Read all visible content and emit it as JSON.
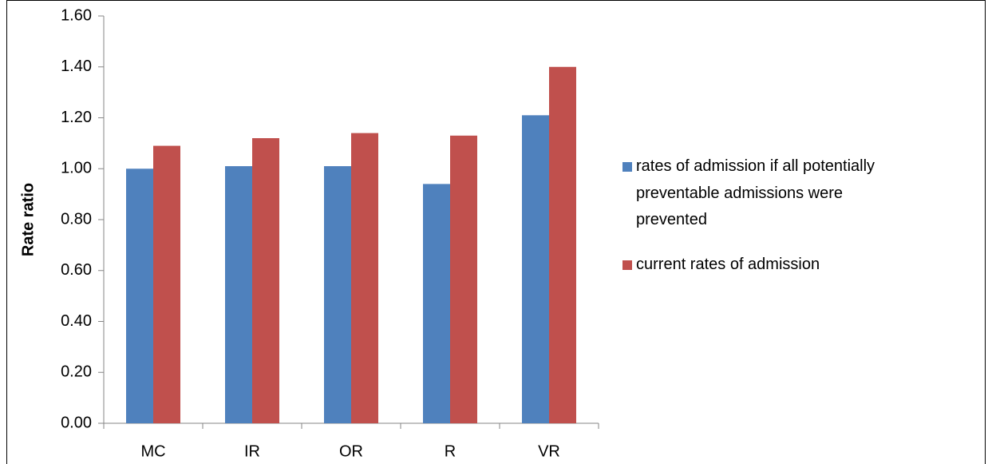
{
  "chart_data": {
    "type": "bar",
    "y_label": "Rate ratio",
    "categories": [
      "MC",
      "IR",
      "OR",
      "R",
      "VR"
    ],
    "series": [
      {
        "name": "rates of admission if all potentially preventable admissions were prevented",
        "color": "#4f81bd",
        "values": [
          1.0,
          1.01,
          1.01,
          0.94,
          1.21
        ]
      },
      {
        "name": "current rates of admission",
        "color": "#c0504d",
        "values": [
          1.09,
          1.12,
          1.14,
          1.13,
          1.4
        ]
      }
    ],
    "ylim": [
      0,
      1.6
    ],
    "yticks": [
      {
        "value": 0,
        "label": "0.00"
      },
      {
        "value": 0.2,
        "label": "0.20"
      },
      {
        "value": 0.4,
        "label": "0.40"
      },
      {
        "value": 0.6,
        "label": "0.60"
      },
      {
        "value": 0.8,
        "label": "0.80"
      },
      {
        "value": 1.0,
        "label": "1.00"
      },
      {
        "value": 1.2,
        "label": "1.20"
      },
      {
        "value": 1.4,
        "label": "1.40"
      },
      {
        "value": 1.6,
        "label": "1.60"
      }
    ],
    "grid": false,
    "legend": "right"
  }
}
